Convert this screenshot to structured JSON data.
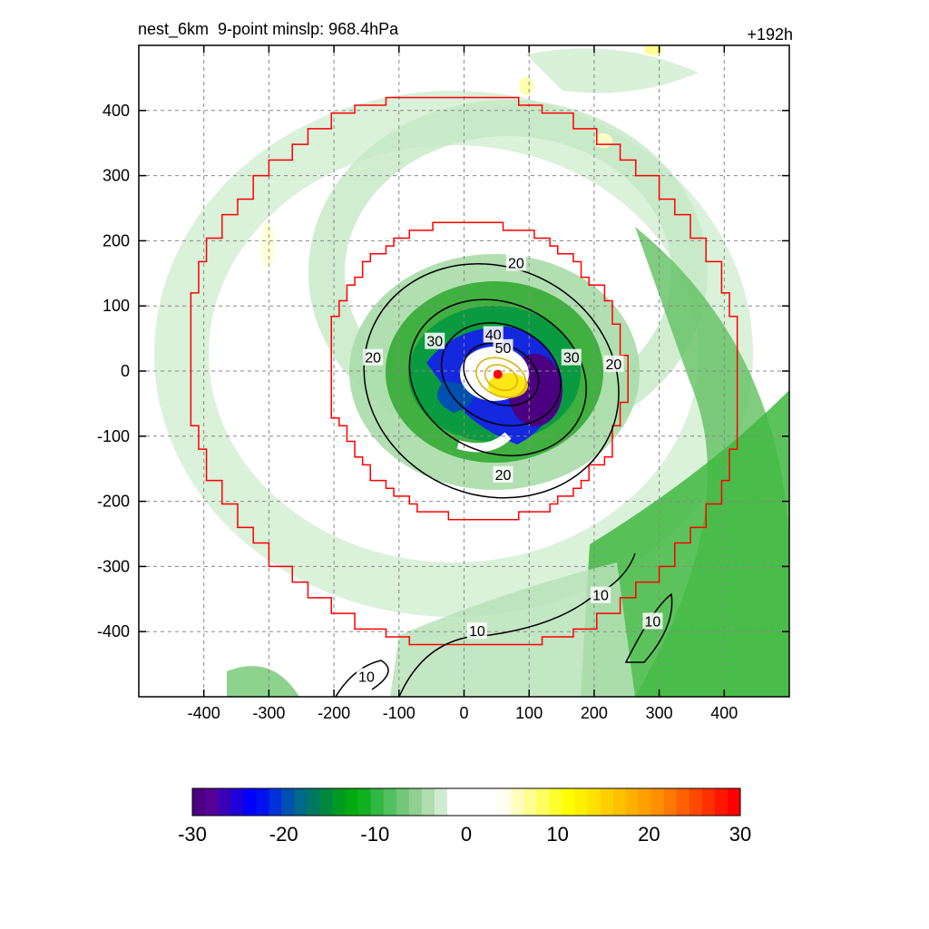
{
  "chart_data": {
    "type": "heatmap",
    "title_left": "nest_6km  9-point minslp: 968.4hPa",
    "title_right": "+192h",
    "xlim": [
      -500,
      500
    ],
    "ylim": [
      -500,
      500
    ],
    "x_ticks": [
      -400,
      -300,
      -200,
      -100,
      0,
      100,
      200,
      300,
      400
    ],
    "y_ticks": [
      400,
      300,
      200,
      100,
      0,
      -100,
      -200,
      -300,
      -400
    ],
    "grid": true,
    "grid_style": "dashed",
    "storm_center": [
      52,
      -5
    ],
    "rings": [
      {
        "color": "#ff0000",
        "radius": 425,
        "center": [
          0,
          0
        ]
      },
      {
        "color": "#ff0000",
        "radius": 230,
        "center": [
          20,
          0
        ]
      }
    ],
    "contours": [
      {
        "label": "20",
        "label_pos": [
          80,
          165
        ]
      },
      {
        "label": "20",
        "label_pos": [
          -140,
          20
        ]
      },
      {
        "label": "20",
        "label_pos": [
          230,
          10
        ]
      },
      {
        "label": "20",
        "label_pos": [
          60,
          -160
        ]
      },
      {
        "label": "30",
        "label_pos": [
          -45,
          45
        ]
      },
      {
        "label": "30",
        "label_pos": [
          165,
          20
        ]
      },
      {
        "label": "40",
        "label_pos": [
          45,
          55
        ]
      },
      {
        "label": "50",
        "label_pos": [
          60,
          35
        ]
      },
      {
        "label": "10",
        "label_pos": [
          210,
          -345
        ]
      },
      {
        "label": "10",
        "label_pos": [
          290,
          -385
        ]
      },
      {
        "label": "10",
        "label_pos": [
          20,
          -400
        ]
      },
      {
        "label": "10",
        "label_pos": [
          -150,
          -470
        ]
      }
    ],
    "colorbar": {
      "min": -30,
      "max": 30,
      "tick_labels": [
        "-30",
        "-20",
        "-10",
        "0",
        "10",
        "20",
        "30"
      ],
      "tick_values": [
        -30,
        -20,
        -10,
        0,
        10,
        20,
        30
      ],
      "colors": [
        "#4b0082",
        "#560097",
        "#3a00b8",
        "#2000d8",
        "#0000ff",
        "#0010f0",
        "#0030d8",
        "#0050b0",
        "#006888",
        "#007860",
        "#008840",
        "#009a20",
        "#00aa10",
        "#10b020",
        "#30b840",
        "#50c060",
        "#70c878",
        "#90d090",
        "#b0dcb0",
        "#d0ecd0",
        "#ffffff",
        "#ffffff",
        "#ffffff",
        "#ffffff",
        "#fffff0",
        "#ffffc0",
        "#ffff90",
        "#ffff60",
        "#ffff30",
        "#ffff00",
        "#fff000",
        "#ffe000",
        "#ffd000",
        "#ffc000",
        "#ffb000",
        "#ffa000",
        "#ff9000",
        "#ff7800",
        "#ff6000",
        "#ff4800",
        "#ff3000",
        "#ff1800",
        "#ff0000"
      ]
    }
  }
}
